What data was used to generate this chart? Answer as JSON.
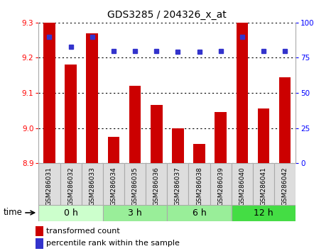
{
  "title": "GDS3285 / 204326_x_at",
  "samples": [
    "GSM286031",
    "GSM286032",
    "GSM286033",
    "GSM286034",
    "GSM286035",
    "GSM286036",
    "GSM286037",
    "GSM286038",
    "GSM286039",
    "GSM286040",
    "GSM286041",
    "GSM286042"
  ],
  "bar_values": [
    9.3,
    9.18,
    9.27,
    8.975,
    9.12,
    9.065,
    9.0,
    8.955,
    9.045,
    9.3,
    9.055,
    9.145
  ],
  "percentile_values": [
    90,
    83,
    90,
    80,
    80,
    80,
    79,
    79,
    80,
    90,
    80,
    80
  ],
  "bar_color": "#cc0000",
  "dot_color": "#3333cc",
  "ylim_left": [
    8.9,
    9.3
  ],
  "ylim_right": [
    0,
    100
  ],
  "yticks_left": [
    8.9,
    9.0,
    9.1,
    9.2,
    9.3
  ],
  "yticks_right": [
    0,
    25,
    50,
    75,
    100
  ],
  "groups": [
    {
      "label": "0 h",
      "start": 0,
      "end": 3,
      "color": "#ccffcc"
    },
    {
      "label": "3 h",
      "start": 3,
      "end": 6,
      "color": "#99ee99"
    },
    {
      "label": "6 h",
      "start": 6,
      "end": 9,
      "color": "#99ee99"
    },
    {
      "label": "12 h",
      "start": 9,
      "end": 12,
      "color": "#44dd44"
    }
  ],
  "time_label": "time",
  "legend_bar_label": "transformed count",
  "legend_dot_label": "percentile rank within the sample",
  "sample_box_color": "#dddddd",
  "sample_box_edge": "#aaaaaa"
}
